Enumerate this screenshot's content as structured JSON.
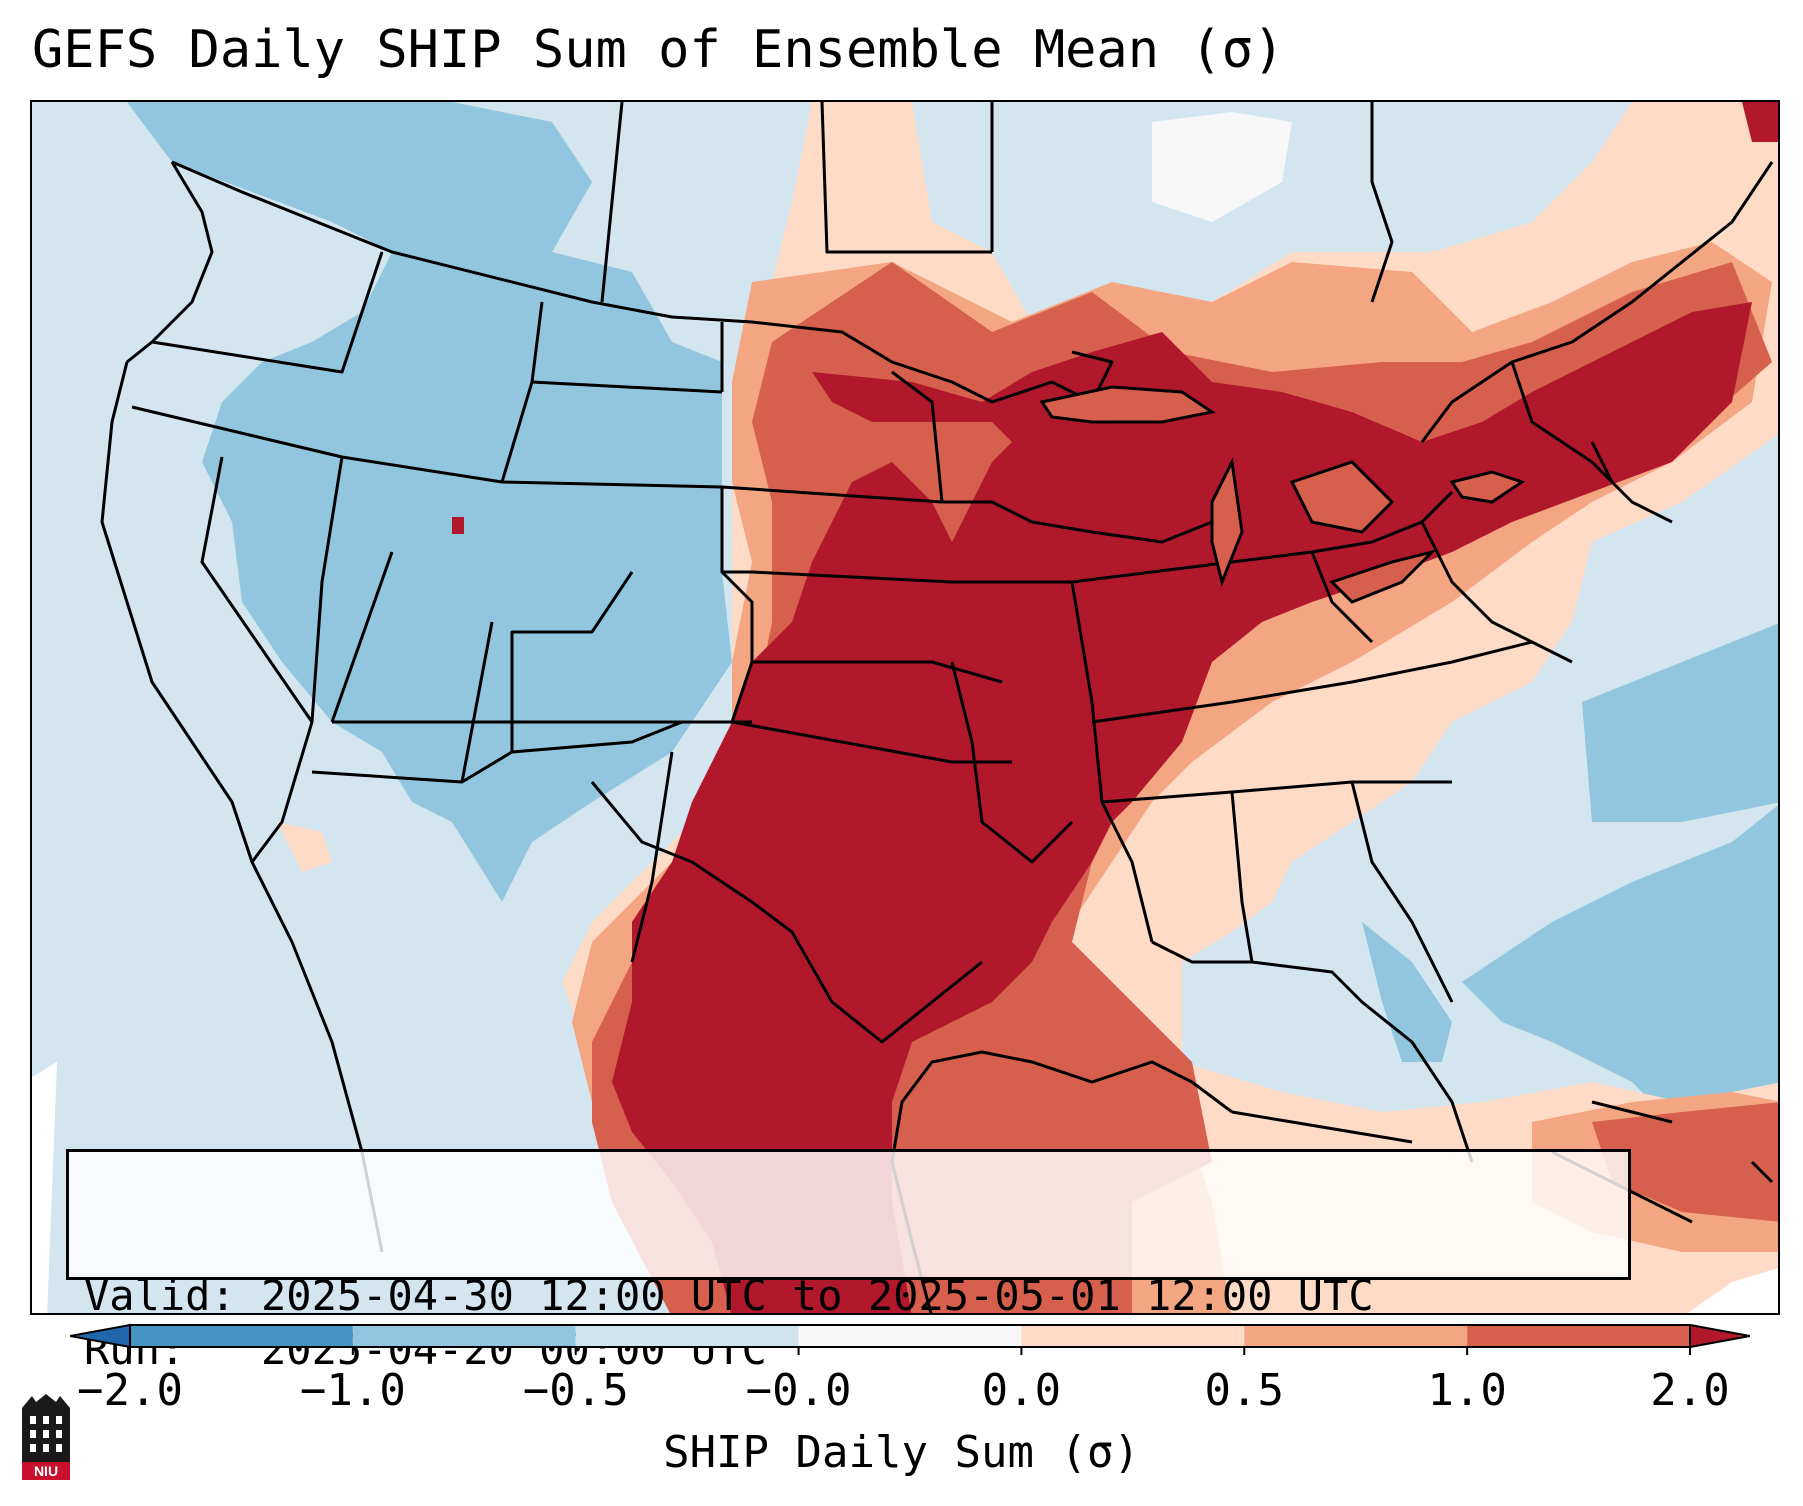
{
  "title": "GEFS Daily SHIP Sum of Ensemble Mean (σ)",
  "info": {
    "valid_label": "Valid:",
    "valid_value": "2025-04-30 12:00 UTC to 2025-05-01 12:00 UTC",
    "run_label": "Run:",
    "run_value": "2025-04-20 00:00 UTC"
  },
  "colorbar": {
    "label": "SHIP Daily Sum (σ)",
    "ticks": [
      "−2.0",
      "−1.0",
      "−0.5",
      "−0.0",
      "0.0",
      "0.5",
      "1.0",
      "2.0"
    ],
    "bins": [
      {
        "color": "#4393c3"
      },
      {
        "color": "#92c5de"
      },
      {
        "color": "#d1e5f0"
      },
      {
        "color": "#f7f7f7"
      },
      {
        "color": "#fddbc7"
      },
      {
        "color": "#f4a582"
      },
      {
        "color": "#d6604d"
      }
    ],
    "under_color": "#2166ac",
    "over_color": "#b2182b"
  },
  "map": {
    "ocean_color": "#d3e6f0",
    "regions_described": [
      "Western US near-normal to negative (blue)",
      "Southern/central Plains, Midwest, Great Lakes, Northeast strongly positive (red)",
      "Gulf of Mexico strongly positive"
    ]
  },
  "logo": {
    "text": "NIU",
    "color": "#c8102e"
  }
}
